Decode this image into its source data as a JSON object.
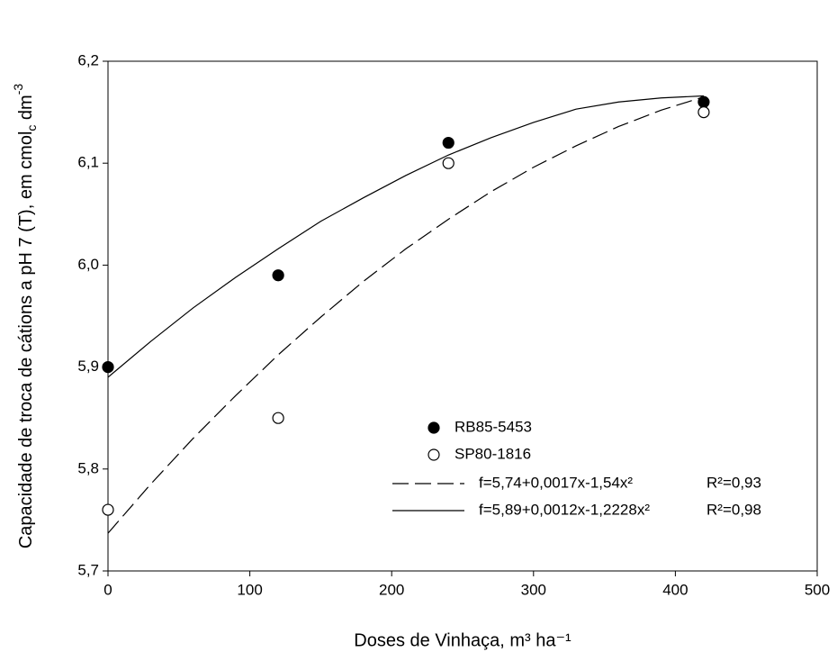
{
  "chart_data": {
    "type": "scatter",
    "x_label": "Doses de Vinhaça, m³ ha⁻¹",
    "y_label_parts": [
      "Capacidade de troca de cátions a pH 7 (T), em cmol",
      "c",
      " dm",
      "-3"
    ],
    "xlim": [
      0,
      500
    ],
    "xticks": [
      0,
      100,
      200,
      300,
      400,
      500
    ],
    "ylim": [
      5.7,
      6.2
    ],
    "yticks": [
      {
        "value": 5.7,
        "label": "5,7"
      },
      {
        "value": 5.8,
        "label": "5,8"
      },
      {
        "value": 5.9,
        "label": "5,9"
      },
      {
        "value": 6.0,
        "label": "6,0"
      },
      {
        "value": 6.1,
        "label": "6,1"
      },
      {
        "value": 6.2,
        "label": "6,2"
      }
    ],
    "series": [
      {
        "name": "RB85-5453",
        "kind": "points",
        "color": "#000000",
        "filled": true,
        "x": [
          0,
          120,
          240,
          420
        ],
        "values": [
          5.9,
          5.99,
          6.12,
          6.16
        ]
      },
      {
        "name": "SP80-1816",
        "kind": "points",
        "color": "#000000",
        "filled": false,
        "x": [
          0,
          120,
          240,
          420
        ],
        "values": [
          5.76,
          5.85,
          6.1,
          6.15
        ]
      },
      {
        "name": "f=5,74+0,0017x-1,54x²",
        "r2": "R²=0,93",
        "kind": "line",
        "dash": true,
        "color": "#000000",
        "x": [
          0,
          30,
          60,
          90,
          120,
          150,
          180,
          210,
          240,
          270,
          300,
          330,
          360,
          390,
          420
        ],
        "values": [
          5.737,
          5.785,
          5.83,
          5.872,
          5.912,
          5.949,
          5.984,
          6.016,
          6.045,
          6.072,
          6.096,
          6.117,
          6.136,
          6.152,
          6.165
        ]
      },
      {
        "name": "f=5,89+0,0012x-1,2228x²",
        "r2": "R²=0,98",
        "kind": "line",
        "dash": false,
        "color": "#000000",
        "x": [
          0,
          30,
          60,
          90,
          120,
          150,
          180,
          210,
          240,
          270,
          300,
          330,
          360,
          390,
          420
        ],
        "values": [
          5.89,
          5.925,
          5.958,
          5.988,
          6.016,
          6.043,
          6.066,
          6.088,
          6.108,
          6.125,
          6.14,
          6.153,
          6.16,
          6.164,
          6.166
        ]
      }
    ]
  }
}
